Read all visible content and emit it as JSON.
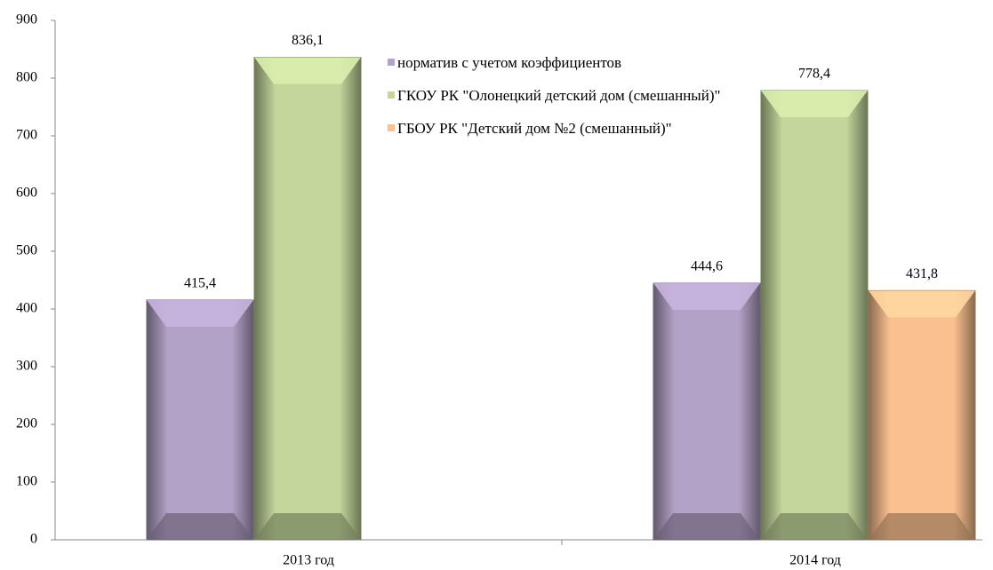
{
  "chart_data": {
    "type": "bar",
    "categories": [
      "2013 год",
      "2014 год"
    ],
    "series": [
      {
        "name": "норматив с учетом коэффициентов",
        "color": "#b3a2c7",
        "values": [
          415.4,
          444.6
        ],
        "value_labels": [
          "415,4",
          "444,6"
        ]
      },
      {
        "name": "ГКОУ РК \"Олонецкий детский дом (смешанный)\"",
        "color": "#c3d69b",
        "values": [
          836.1,
          778.4
        ],
        "value_labels": [
          "836,1",
          "778,4"
        ]
      },
      {
        "name": "ГБОУ РК \"Детский дом №2 (смешанный)\"",
        "color": "#fac090",
        "values": [
          null,
          431.8
        ],
        "value_labels": [
          null,
          "431,8"
        ]
      }
    ],
    "ylim": [
      0,
      900
    ],
    "yticks": [
      0,
      100,
      200,
      300,
      400,
      500,
      600,
      700,
      800,
      900
    ],
    "legend": "top-center"
  }
}
